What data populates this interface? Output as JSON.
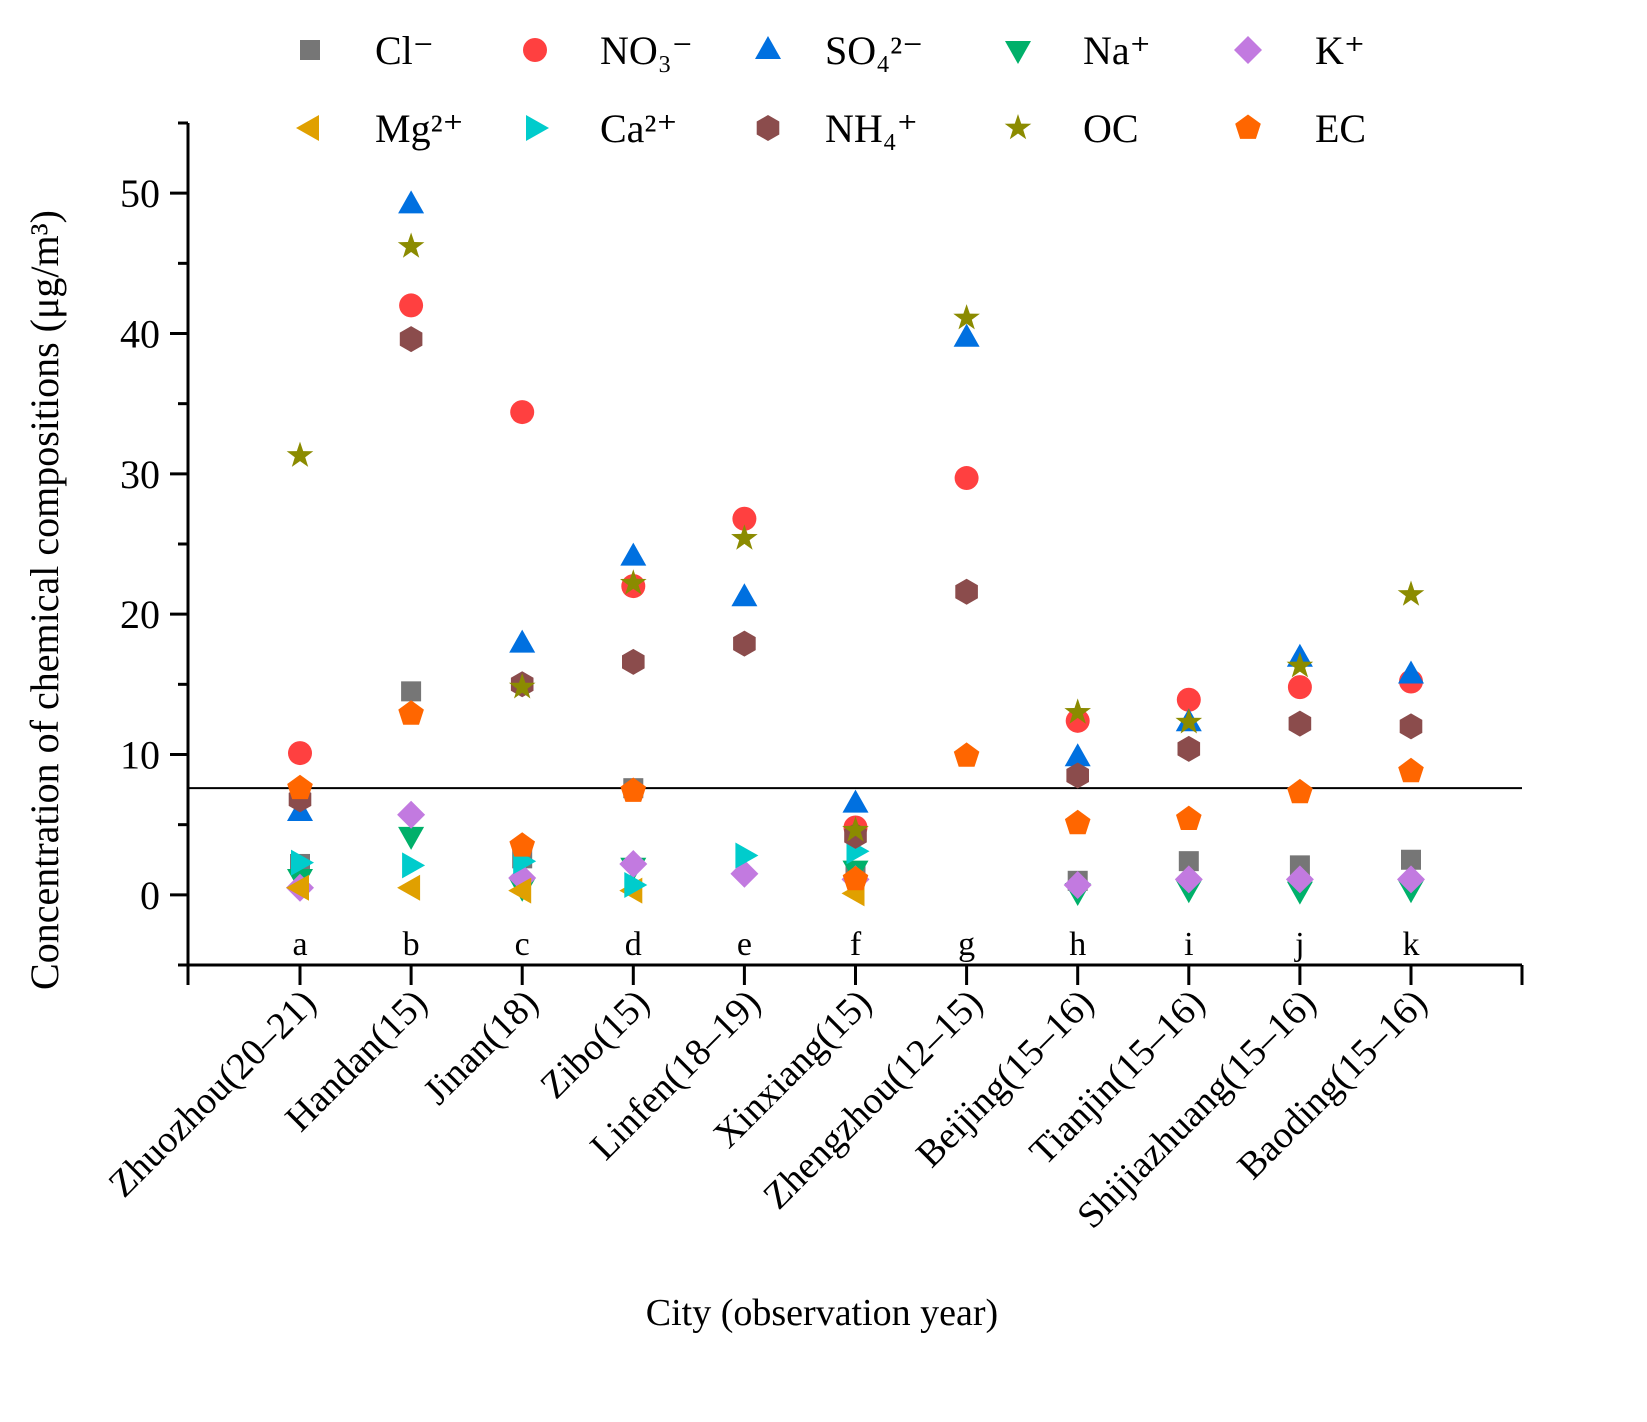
{
  "chart_data": {
    "type": "scatter",
    "title": "",
    "xlabel": "City (observation year)",
    "ylabel": "Concentration of chemical compositions (μg/m³)",
    "ylim": [
      -5,
      55
    ],
    "yticks": [
      0,
      10,
      20,
      30,
      40,
      50
    ],
    "grid": false,
    "legend_placement": "top",
    "reference_line": 7.6,
    "categories": [
      "Zhuozhou(20–21)",
      "Handan(15)",
      "Jinan(18)",
      "Zibo(15)",
      "Linfen(18–19)",
      "Xinxiang(15)",
      "Zhengzhou(12–15)",
      "Beijing(15–16)",
      "Tianjin(15–16)",
      "Shijiazhuang(15–16)",
      "Baoding(15–16)"
    ],
    "letters": [
      "a",
      "b",
      "c",
      "d",
      "e",
      "f",
      "g",
      "h",
      "i",
      "j",
      "k"
    ],
    "series": [
      {
        "name": "Cl⁻",
        "marker": "square",
        "color": "#767676",
        "values": [
          2.2,
          14.5,
          2.6,
          7.6,
          null,
          1.6,
          null,
          1.0,
          2.4,
          2.1,
          2.5
        ]
      },
      {
        "name": "NO₃⁻",
        "marker": "circle",
        "color": "#ff4040",
        "values": [
          10.1,
          42.0,
          34.4,
          22.0,
          26.8,
          4.8,
          29.7,
          12.4,
          13.9,
          14.8,
          15.2
        ]
      },
      {
        "name": "SO₄²⁻",
        "marker": "triangle-up",
        "color": "#0070e0",
        "values": [
          5.9,
          49.2,
          17.9,
          24.1,
          21.2,
          6.5,
          39.7,
          9.8,
          12.3,
          16.9,
          15.7
        ]
      },
      {
        "name": "Na⁺",
        "marker": "triangle-down",
        "color": "#00b06a",
        "values": [
          1.2,
          4.2,
          0.5,
          2.0,
          null,
          1.8,
          null,
          0.2,
          0.4,
          0.3,
          0.4
        ]
      },
      {
        "name": "K⁺",
        "marker": "diamond",
        "color": "#c27ae0",
        "values": [
          0.5,
          5.7,
          1.2,
          2.2,
          1.5,
          1.1,
          null,
          0.7,
          1.1,
          1.1,
          1.1
        ]
      },
      {
        "name": "Mg²⁺",
        "marker": "triangle-left",
        "color": "#e0a000",
        "values": [
          0.5,
          0.5,
          0.3,
          0.3,
          null,
          0.1,
          null,
          null,
          null,
          null,
          null
        ]
      },
      {
        "name": "Ca²⁺",
        "marker": "triangle-right",
        "color": "#00cccc",
        "values": [
          2.3,
          2.1,
          2.4,
          0.7,
          2.8,
          3.1,
          null,
          null,
          null,
          null,
          null
        ]
      },
      {
        "name": "NH₄⁺",
        "marker": "hexagon",
        "color": "#8b4c4c",
        "values": [
          6.8,
          39.6,
          15.0,
          16.6,
          17.9,
          4.2,
          21.6,
          8.5,
          10.4,
          12.2,
          12.0
        ]
      },
      {
        "name": "OC",
        "marker": "star",
        "color": "#8b8b00",
        "values": [
          31.3,
          46.2,
          14.8,
          22.2,
          25.4,
          4.6,
          41.1,
          13.0,
          12.3,
          16.3,
          21.4
        ]
      },
      {
        "name": "EC",
        "marker": "pentagon",
        "color": "#ff6600",
        "values": [
          7.6,
          12.9,
          3.5,
          7.4,
          null,
          1.1,
          9.9,
          5.1,
          5.4,
          7.3,
          8.8
        ]
      }
    ]
  }
}
